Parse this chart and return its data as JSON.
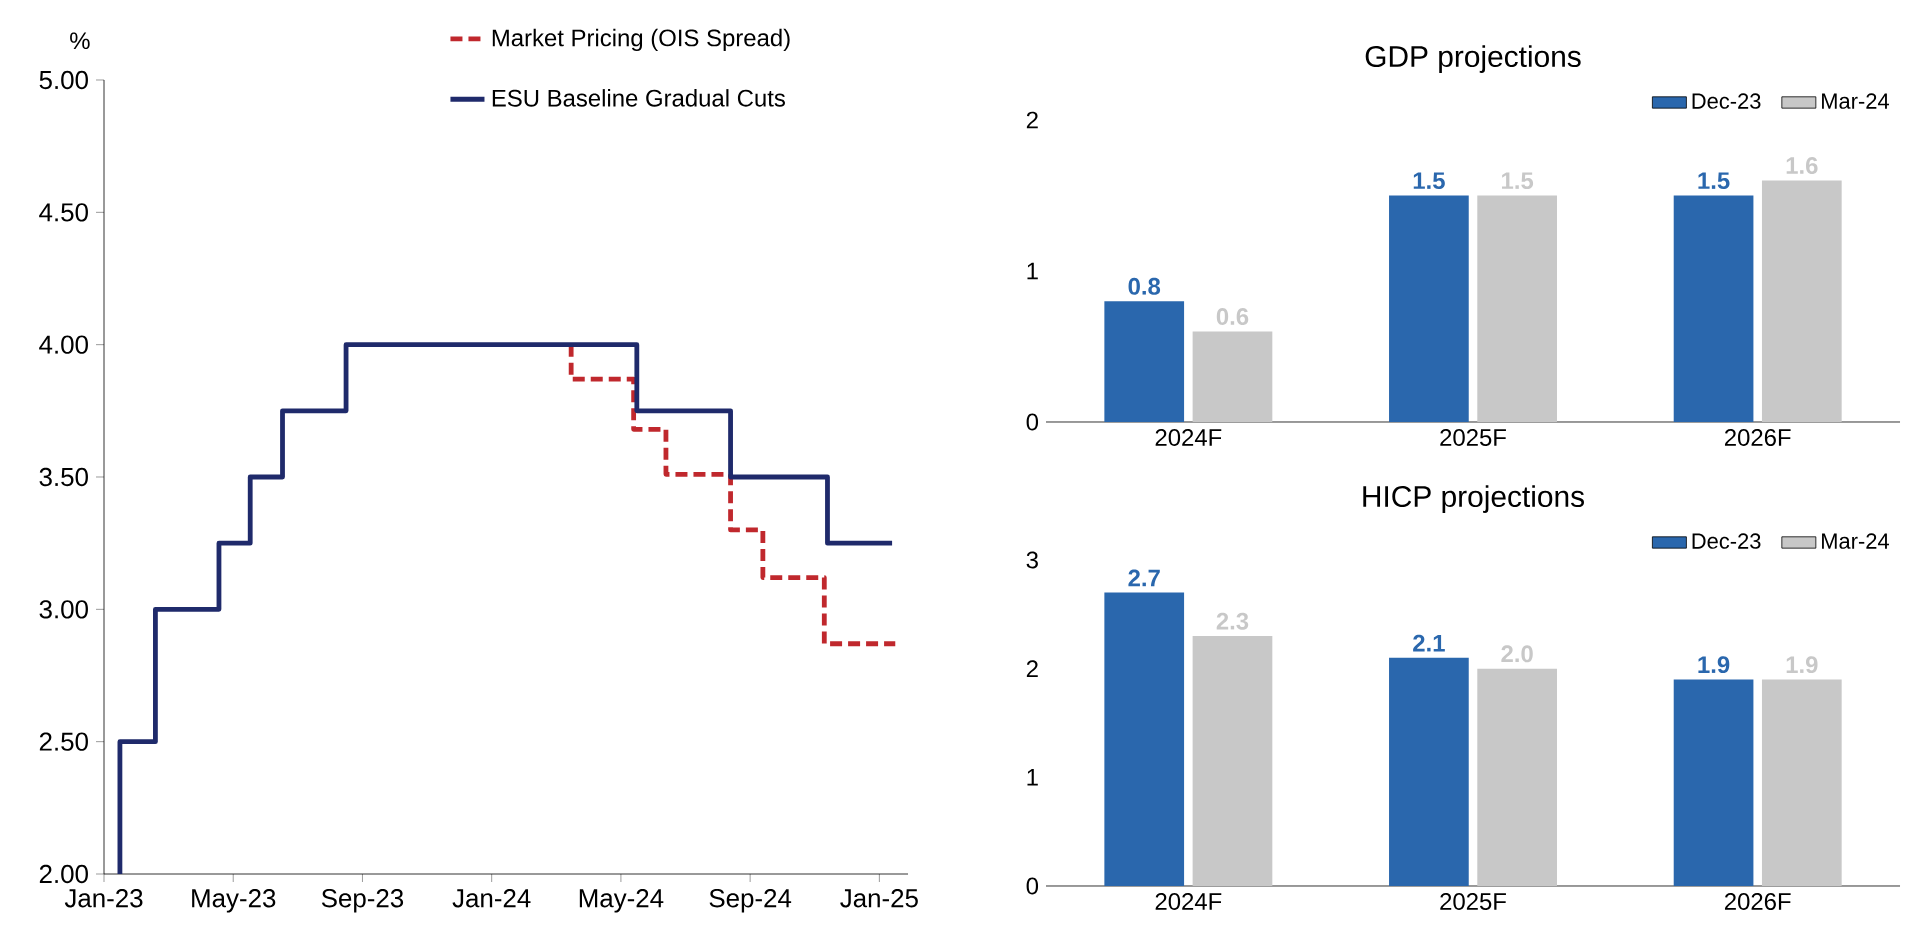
{
  "chart_data": [
    {
      "type": "step",
      "ylabel": "%",
      "legend": "top",
      "marker": "none",
      "xlim": [
        "2023-01-01",
        "2025-01-28"
      ],
      "ylim": [
        2,
        5
      ],
      "xticks": [
        {
          "value": "2023-01",
          "label": "Jan-23"
        },
        {
          "value": "2023-05",
          "label": "May-23"
        },
        {
          "value": "2023-09",
          "label": "Sep-23"
        },
        {
          "value": "2024-01",
          "label": "Jan-24"
        },
        {
          "value": "2024-05",
          "label": "May-24"
        },
        {
          "value": "2024-09",
          "label": "Sep-24"
        },
        {
          "value": "2025-01",
          "label": "Jan-25"
        }
      ],
      "yticks": [
        {
          "value": 2,
          "label": "2.00"
        },
        {
          "value": 2.5,
          "label": "2.50"
        },
        {
          "value": 3,
          "label": "3.00"
        },
        {
          "value": 3.5,
          "label": "3.50"
        },
        {
          "value": 4,
          "label": "4.00"
        },
        {
          "value": 4.5,
          "label": "4.50"
        },
        {
          "value": 5,
          "label": "5.00"
        }
      ],
      "series": [
        {
          "name": "Market Pricing (OIS Spread)",
          "color": "#c0282d",
          "line_style": "dashed",
          "x": [
            "2024-03-15",
            "2024-03-15",
            "2024-05-13",
            "2024-06-13",
            "2024-08-13",
            "2024-09-13",
            "2024-11-10",
            "2025-01-16"
          ],
          "values": [
            4.0,
            3.87,
            3.68,
            3.51,
            3.3,
            3.12,
            2.87,
            2.87
          ]
        },
        {
          "name": "ESU Baseline Gradual Cuts",
          "color": "#1f2a6b",
          "line_style": "solid",
          "x": [
            "2023-01-16",
            "2023-01-16",
            "2023-02-19",
            "2023-04-18",
            "2023-05-17",
            "2023-06-17",
            "2023-08-16",
            "2024-05-16",
            "2024-08-13",
            "2024-11-13",
            "2025-01-13"
          ],
          "values": [
            2.0,
            2.5,
            3.0,
            3.25,
            3.5,
            3.75,
            4.0,
            3.75,
            3.5,
            3.25,
            3.25
          ]
        }
      ]
    },
    {
      "type": "bar",
      "title": "GDP projections",
      "legend": "top right",
      "categories": [
        "2024F",
        "2025F",
        "2026F"
      ],
      "ylim": [
        0,
        2
      ],
      "yticks": [
        0,
        1,
        2
      ],
      "series": [
        {
          "name": "Dec-23",
          "color": "#2a67ad",
          "values": [
            0.8,
            1.5,
            1.5
          ],
          "value_labels": [
            "0.8",
            "1.5",
            "1.5"
          ]
        },
        {
          "name": "Mar-24",
          "color": "#c8c8c8",
          "values": [
            0.6,
            1.5,
            1.6
          ],
          "value_labels": [
            "0.6",
            "1.5",
            "1.6"
          ]
        }
      ]
    },
    {
      "type": "bar",
      "title": "HICP projections",
      "legend": "top right",
      "categories": [
        "2024F",
        "2025F",
        "2026F"
      ],
      "ylim": [
        0,
        3
      ],
      "yticks": [
        0,
        1,
        2,
        3
      ],
      "series": [
        {
          "name": "Dec-23",
          "color": "#2a67ad",
          "values": [
            2.7,
            2.1,
            1.9
          ],
          "value_labels": [
            "2.7",
            "2.1",
            "1.9"
          ]
        },
        {
          "name": "Mar-24",
          "color": "#c8c8c8",
          "values": [
            2.3,
            2.0,
            1.9
          ],
          "value_labels": [
            "2.3",
            "2.0",
            "1.9"
          ]
        }
      ]
    }
  ]
}
